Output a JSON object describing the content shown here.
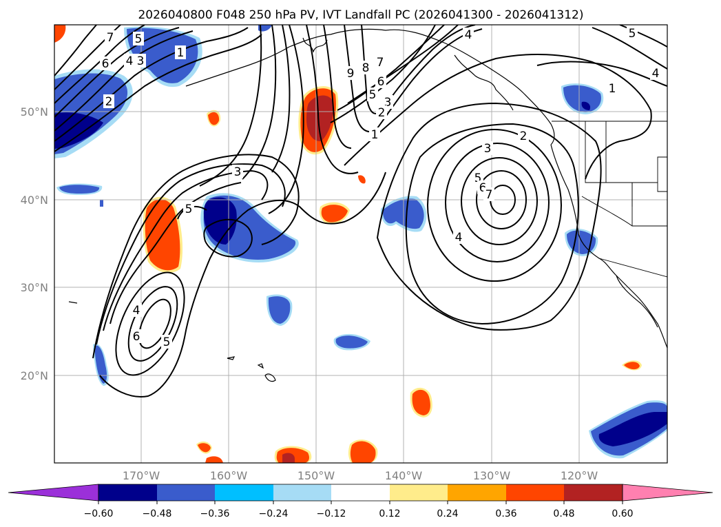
{
  "title": "2026040800 F048 250 hPa PV, IVT Landfall PC (2026041300 - 2026041312)",
  "lat_labels": [
    "50°N",
    "40°N",
    "30°N",
    "20°N"
  ],
  "lon_labels": [
    "170°W",
    "160°W",
    "150°W",
    "140°W",
    "130°W",
    "120°W"
  ],
  "colorbar": {
    "tick_labels": [
      "−0.60",
      "−0.48",
      "−0.36",
      "−0.24",
      "−0.12",
      "0.12",
      "0.24",
      "0.36",
      "0.48",
      "0.60"
    ],
    "colors": [
      "#9b30d9",
      "#00008b",
      "#3a5ccc",
      "#00bfff",
      "#a6dcf5",
      "#ffffff",
      "#ffec8b",
      "#ffa500",
      "#ff4500",
      "#b22222",
      "#ff80b0"
    ]
  },
  "contour_labels": {
    "west_trough": [
      "7",
      "5",
      "6",
      "4",
      "3",
      "1",
      "2"
    ],
    "central": [
      "9",
      "8",
      "7",
      "5",
      "6",
      "3",
      "2",
      "1",
      "4",
      "3",
      "5"
    ],
    "southwest": [
      "4",
      "6",
      "5"
    ],
    "east_low": [
      "3",
      "2",
      "5",
      "6",
      "7",
      "4"
    ],
    "northeast": [
      "5",
      "4",
      "1"
    ]
  }
}
